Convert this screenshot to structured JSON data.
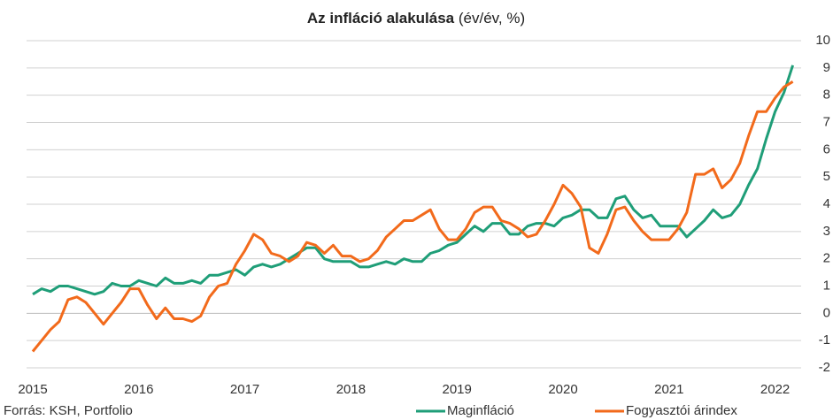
{
  "chart_data": {
    "type": "line",
    "title": "Az infláció alakulása",
    "subtitle": "(év/év, %)",
    "source": "Forrás: KSH, Portfolio",
    "categories": [
      "2015",
      null,
      null,
      null,
      null,
      null,
      null,
      null,
      null,
      null,
      null,
      null,
      "2016",
      null,
      null,
      null,
      null,
      null,
      null,
      null,
      null,
      null,
      null,
      null,
      "2017",
      null,
      null,
      null,
      null,
      null,
      null,
      null,
      null,
      null,
      null,
      null,
      "2018",
      null,
      null,
      null,
      null,
      null,
      null,
      null,
      null,
      null,
      null,
      null,
      "2019",
      null,
      null,
      null,
      null,
      null,
      null,
      null,
      null,
      null,
      null,
      null,
      "2020",
      null,
      null,
      null,
      null,
      null,
      null,
      null,
      null,
      null,
      null,
      null,
      "2021",
      null,
      null,
      null,
      null,
      null,
      null,
      null,
      null,
      null,
      null,
      null,
      "2022",
      null,
      null
    ],
    "series": [
      {
        "name": "Maginfláció",
        "color": "#1f9e78",
        "values": [
          0.7,
          0.9,
          0.8,
          1.0,
          1.0,
          0.9,
          0.8,
          0.7,
          0.8,
          1.1,
          1.0,
          1.0,
          1.2,
          1.1,
          1.0,
          1.3,
          1.1,
          1.1,
          1.2,
          1.1,
          1.4,
          1.4,
          1.5,
          1.6,
          1.4,
          1.7,
          1.8,
          1.7,
          1.8,
          2.0,
          2.2,
          2.4,
          2.4,
          2.0,
          1.9,
          1.9,
          1.9,
          1.7,
          1.7,
          1.8,
          1.9,
          1.8,
          2.0,
          1.9,
          1.9,
          2.2,
          2.3,
          2.5,
          2.6,
          2.9,
          3.2,
          3.0,
          3.3,
          3.3,
          2.9,
          2.9,
          3.2,
          3.3,
          3.3,
          3.2,
          3.5,
          3.6,
          3.8,
          3.8,
          3.5,
          3.5,
          4.2,
          4.3,
          3.8,
          3.5,
          3.6,
          3.2,
          3.2,
          3.2,
          2.8,
          3.1,
          3.4,
          3.8,
          3.5,
          3.6,
          4.0,
          4.7,
          5.3,
          6.4,
          7.4,
          8.1,
          9.1
        ]
      },
      {
        "name": "Fogyasztói árindex",
        "color": "#f26a1b",
        "values": [
          -1.4,
          -1.0,
          -0.6,
          -0.3,
          0.5,
          0.6,
          0.4,
          0.0,
          -0.4,
          0.0,
          0.4,
          0.9,
          0.9,
          0.3,
          -0.2,
          0.2,
          -0.2,
          -0.2,
          -0.3,
          -0.1,
          0.6,
          1.0,
          1.1,
          1.8,
          2.3,
          2.9,
          2.7,
          2.2,
          2.1,
          1.9,
          2.1,
          2.6,
          2.5,
          2.2,
          2.5,
          2.1,
          2.1,
          1.9,
          2.0,
          2.3,
          2.8,
          3.1,
          3.4,
          3.4,
          3.6,
          3.8,
          3.1,
          2.7,
          2.7,
          3.1,
          3.7,
          3.9,
          3.9,
          3.4,
          3.3,
          3.1,
          2.8,
          2.9,
          3.4,
          4.0,
          4.7,
          4.4,
          3.9,
          2.4,
          2.2,
          2.9,
          3.8,
          3.9,
          3.4,
          3.0,
          2.7,
          2.7,
          2.7,
          3.1,
          3.7,
          5.1,
          5.1,
          5.3,
          4.6,
          4.9,
          5.5,
          6.5,
          7.4,
          7.4,
          7.9,
          8.3,
          8.5
        ]
      }
    ],
    "ylim": [
      -2,
      10
    ],
    "yticks": [
      -2,
      -1,
      0,
      1,
      2,
      3,
      4,
      5,
      6,
      7,
      8,
      9,
      10
    ],
    "grid": true,
    "legend": "bottom"
  }
}
